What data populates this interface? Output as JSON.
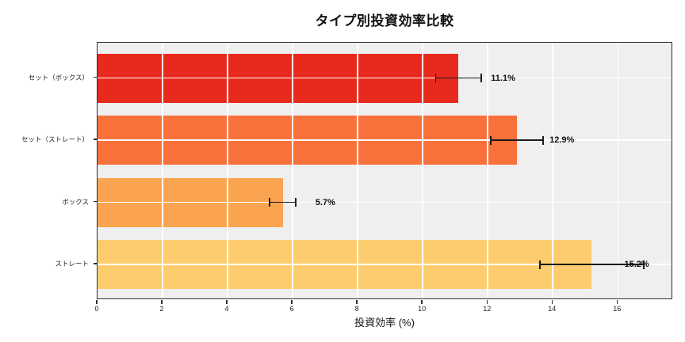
{
  "chart_data": {
    "type": "bar",
    "orientation": "horizontal",
    "title": "タイプ別投資効率比較",
    "xlabel": "投資効率 (%)",
    "ylabel": "",
    "categories": [
      "セット（ボックス）",
      "セット（ストレート）",
      "ボックス",
      "ストレート"
    ],
    "values": [
      11.1,
      12.9,
      5.7,
      15.2
    ],
    "errors": [
      0.7,
      0.8,
      0.4,
      1.6
    ],
    "value_labels": [
      "11.1%",
      "12.9%",
      "5.7%",
      "15.2%"
    ],
    "bar_colors": [
      "#e72a1d",
      "#f8703a",
      "#fba44f",
      "#fdcc6e"
    ],
    "xlim": [
      0,
      17.7
    ],
    "xticks": [
      0,
      2,
      4,
      6,
      8,
      10,
      12,
      14,
      16
    ],
    "grid": true,
    "legend": false,
    "colors": {
      "plot_bg": "#efefef",
      "figure_bg": "#ffffff",
      "grid": "#ffffff",
      "spine": "#2e2e2e",
      "errorbar": "#1a1a1a",
      "text": "#111111"
    }
  }
}
